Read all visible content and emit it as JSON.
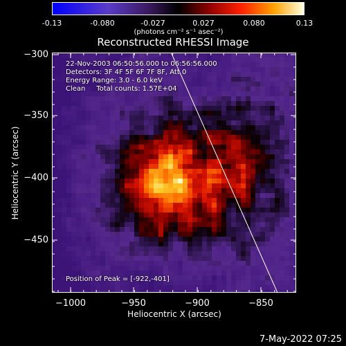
{
  "colorbar": {
    "ticks": [
      "-0.13",
      "-0.080",
      "-0.027",
      "0.027",
      "0.080",
      "0.13"
    ],
    "units": "(photons cm⁻² s⁻¹ asec⁻²)",
    "range": [
      -0.13,
      0.13
    ]
  },
  "title": "Reconstructed RHESSI Image",
  "info": {
    "line1": "22-Nov-2003 06:50:56.000 to 06:56:56.000",
    "line2": "Detectors: 3F 4F 5F 6F 7F 8F, Att 0",
    "line3": "Energy Range: 3.0 - 6.0 keV",
    "line4": "Clean     Total counts: 1.57E+04",
    "peak": "Position of Peak = [-922,-401]"
  },
  "axes": {
    "xlabel": "Heliocentric X (arcsec)",
    "ylabel": "Heliocentric Y (arcsec)",
    "xticks": [
      "−1000",
      "−950",
      "−900",
      "−850"
    ],
    "yticks": [
      "−300",
      "−350",
      "−400",
      "−450"
    ],
    "xrange": [
      -1015,
      -822
    ],
    "yrange": [
      -297,
      -490
    ]
  },
  "colors": {
    "background": "#000000",
    "text": "#ffffff"
  },
  "timestamp": "7-May-2022 07:25"
}
